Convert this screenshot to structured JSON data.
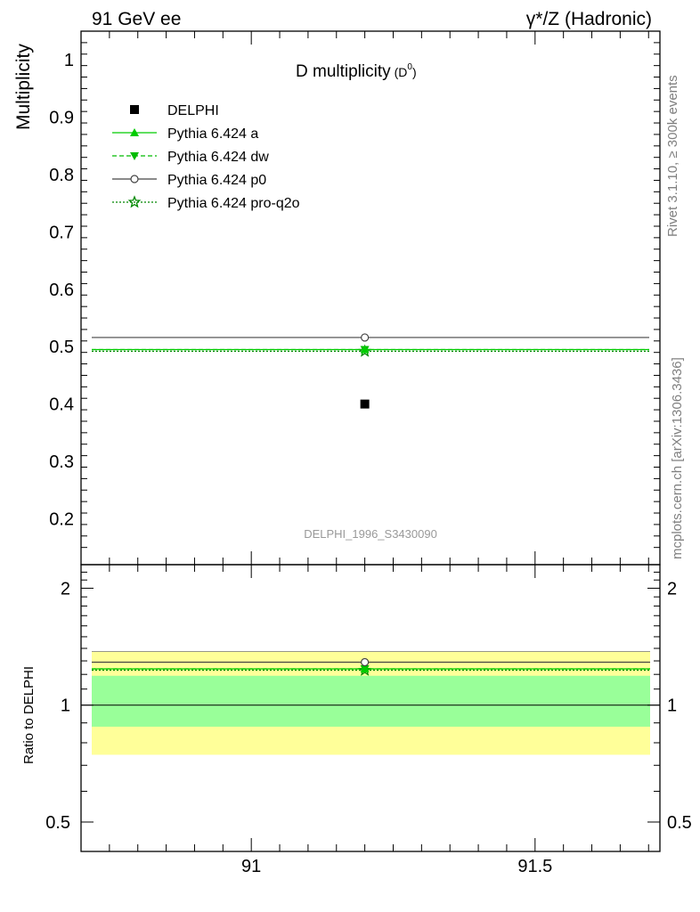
{
  "header": {
    "left": "91 GeV ee",
    "right": "γ*/Z (Hadronic)"
  },
  "side_labels": {
    "rivet": "Rivet 3.1.10, ≥ 300k events",
    "mcplots": "mcplots.cern.ch [arXiv:1306.3436]"
  },
  "chart_data": [
    {
      "panel": "main",
      "type": "scatter",
      "title": "D multiplicity",
      "title_sub": "(D",
      "title_sup": "0",
      "title_close": ")",
      "ylabel": "Multiplicity",
      "xlim": [
        90.7,
        91.72
      ],
      "ylim": [
        0.12,
        1.05
      ],
      "yticks": [
        0.2,
        0.3,
        0.4,
        0.5,
        0.6,
        0.7,
        0.8,
        0.9,
        1
      ],
      "ytick_labels": [
        "0.2",
        "0.3",
        "0.4",
        "0.5",
        "0.6",
        "0.7",
        "0.8",
        "0.9",
        "1"
      ],
      "watermark": "DELPHI_1996_S3430090",
      "legend_position": "top-left",
      "series": [
        {
          "name": "DELPHI",
          "kind": "data",
          "color": "#000000",
          "marker": "square",
          "x": [
            91.2
          ],
          "y": [
            0.4
          ],
          "x_range": [
            90.7,
            91.72
          ]
        },
        {
          "name": "Pythia 6.424 a",
          "kind": "mc",
          "color": "#00cc00",
          "marker": "triangle-up",
          "linestyle": "solid",
          "x": [
            91.2
          ],
          "y": [
            0.495
          ],
          "x_range": [
            90.7,
            91.72
          ]
        },
        {
          "name": "Pythia 6.424 dw",
          "kind": "mc",
          "color": "#00bb00",
          "marker": "triangle-down",
          "linestyle": "dashed",
          "x": [
            91.2
          ],
          "y": [
            0.495
          ],
          "x_range": [
            90.7,
            91.72
          ]
        },
        {
          "name": "Pythia 6.424 p0",
          "kind": "mc",
          "color": "#444444",
          "marker": "circle-open",
          "linestyle": "solid",
          "x": [
            91.2
          ],
          "y": [
            0.516
          ],
          "x_range": [
            90.7,
            91.72
          ]
        },
        {
          "name": "Pythia 6.424 pro-q2o",
          "kind": "mc",
          "color": "#008800",
          "marker": "star",
          "linestyle": "dotted",
          "x": [
            91.2
          ],
          "y": [
            0.492
          ],
          "x_range": [
            90.7,
            91.72
          ]
        }
      ]
    },
    {
      "panel": "ratio",
      "type": "line",
      "ylabel": "Ratio to DELPHI",
      "xlim": [
        90.7,
        91.72
      ],
      "ylim": [
        0.42,
        2.3
      ],
      "ylog": true,
      "yticks": [
        0.5,
        1,
        2
      ],
      "ytick_labels": [
        "0.5",
        "1",
        "2"
      ],
      "xticks": [
        91,
        91.5
      ],
      "xtick_labels": [
        "91",
        "91.5"
      ],
      "band_outer": {
        "low": 0.745,
        "high": 1.375,
        "color": "#ffff99"
      },
      "band_inner": {
        "low": 0.88,
        "high": 1.19,
        "color": "#99ff99"
      },
      "series": [
        {
          "name": "Pythia 6.424 a",
          "color": "#00cc00",
          "marker": "triangle-up",
          "linestyle": "solid",
          "x": [
            91.2
          ],
          "y": [
            1.24
          ]
        },
        {
          "name": "Pythia 6.424 dw",
          "color": "#00bb00",
          "marker": "triangle-down",
          "linestyle": "dashed",
          "x": [
            91.2
          ],
          "y": [
            1.24
          ]
        },
        {
          "name": "Pythia 6.424 p0",
          "color": "#444444",
          "marker": "circle-open",
          "linestyle": "solid",
          "x": [
            91.2
          ],
          "y": [
            1.29
          ]
        },
        {
          "name": "Pythia 6.424 pro-q2o",
          "color": "#008800",
          "marker": "star",
          "linestyle": "dotted",
          "x": [
            91.2
          ],
          "y": [
            1.23
          ]
        }
      ]
    }
  ]
}
